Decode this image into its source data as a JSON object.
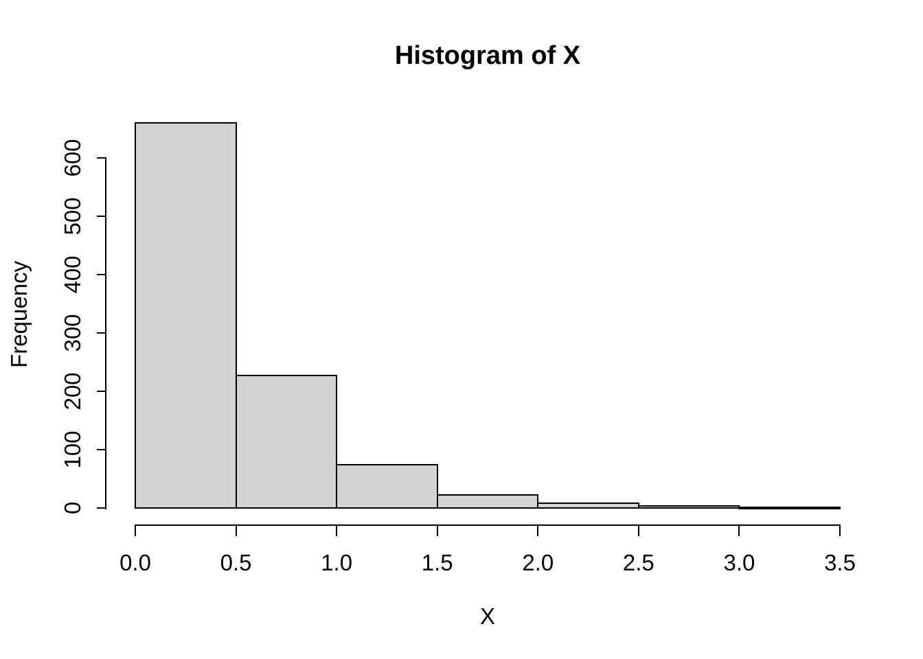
{
  "chart_data": {
    "type": "bar",
    "subtype": "histogram",
    "title": "Histogram of X",
    "xlabel": "X",
    "ylabel": "Frequency",
    "bin_edges": [
      0,
      0.5,
      1.0,
      1.5,
      2.0,
      2.5,
      3.0,
      3.5
    ],
    "counts": [
      660,
      227,
      74,
      22,
      8,
      3,
      1
    ],
    "x_ticks": [
      {
        "value": 0.0,
        "label": "0.0"
      },
      {
        "value": 0.5,
        "label": "0.5"
      },
      {
        "value": 1.0,
        "label": "1.0"
      },
      {
        "value": 1.5,
        "label": "1.5"
      },
      {
        "value": 2.0,
        "label": "2.0"
      },
      {
        "value": 2.5,
        "label": "2.5"
      },
      {
        "value": 3.0,
        "label": "3.0"
      },
      {
        "value": 3.5,
        "label": "3.5"
      }
    ],
    "y_ticks": [
      {
        "value": 0,
        "label": "0"
      },
      {
        "value": 100,
        "label": "100"
      },
      {
        "value": 200,
        "label": "200"
      },
      {
        "value": 300,
        "label": "300"
      },
      {
        "value": 400,
        "label": "400"
      },
      {
        "value": 500,
        "label": "500"
      },
      {
        "value": 600,
        "label": "600"
      }
    ],
    "xlim": [
      0,
      3.5
    ],
    "ylim": [
      0,
      660
    ],
    "grid": false,
    "legend": false,
    "bar_fill": "#d3d3d3",
    "bar_border": "#000000",
    "axis_color": "#000000",
    "text_color": "#000000",
    "background": "#ffffff"
  }
}
